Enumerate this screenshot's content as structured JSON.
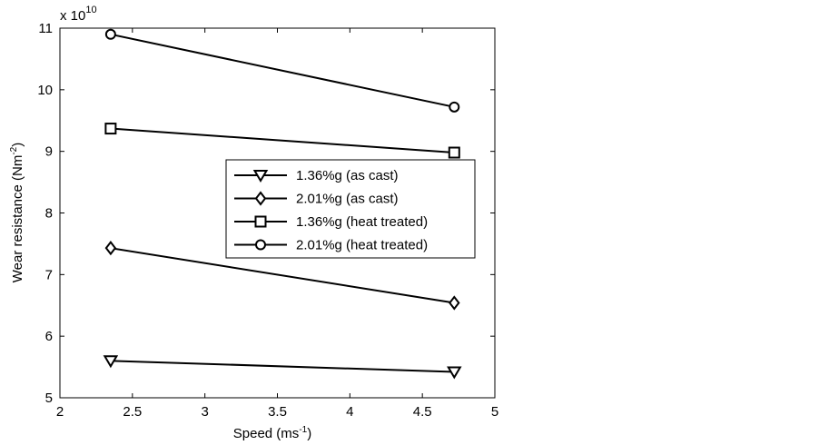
{
  "chart_data": {
    "type": "line",
    "title": "",
    "xlabel_base": "Speed (ms",
    "xlabel_sup": "-1",
    "xlabel_end": ")",
    "ylabel_base": "Wear resistance (Nm",
    "ylabel_sup": "-2",
    "ylabel_end": ")",
    "y_multiplier_base": "x 10",
    "y_multiplier_exp": "10",
    "xlim": [
      2,
      5
    ],
    "ylim": [
      5,
      11
    ],
    "xticks": [
      2,
      2.5,
      3,
      3.5,
      4,
      4.5,
      5
    ],
    "xtick_labels": [
      "2",
      "2.5",
      "3",
      "3.5",
      "4",
      "4.5",
      "5"
    ],
    "yticks": [
      5,
      6,
      7,
      8,
      9,
      10,
      11
    ],
    "ytick_labels": [
      "5",
      "6",
      "7",
      "8",
      "9",
      "10",
      "11"
    ],
    "grid": false,
    "legend_position": "right-center",
    "series": [
      {
        "name": "1.36%g (as cast)",
        "marker": "triangle-down",
        "x": [
          2.35,
          4.72
        ],
        "y": [
          5.6,
          5.42
        ]
      },
      {
        "name": "2.01%g (as cast)",
        "marker": "diamond",
        "x": [
          2.35,
          4.72
        ],
        "y": [
          7.43,
          6.54
        ]
      },
      {
        "name": "1.36%g (heat treated)",
        "marker": "square",
        "x": [
          2.35,
          4.72
        ],
        "y": [
          9.37,
          8.98
        ]
      },
      {
        "name": "2.01%g (heat treated)",
        "marker": "circle",
        "x": [
          2.35,
          4.72
        ],
        "y": [
          10.9,
          9.72
        ]
      }
    ]
  }
}
